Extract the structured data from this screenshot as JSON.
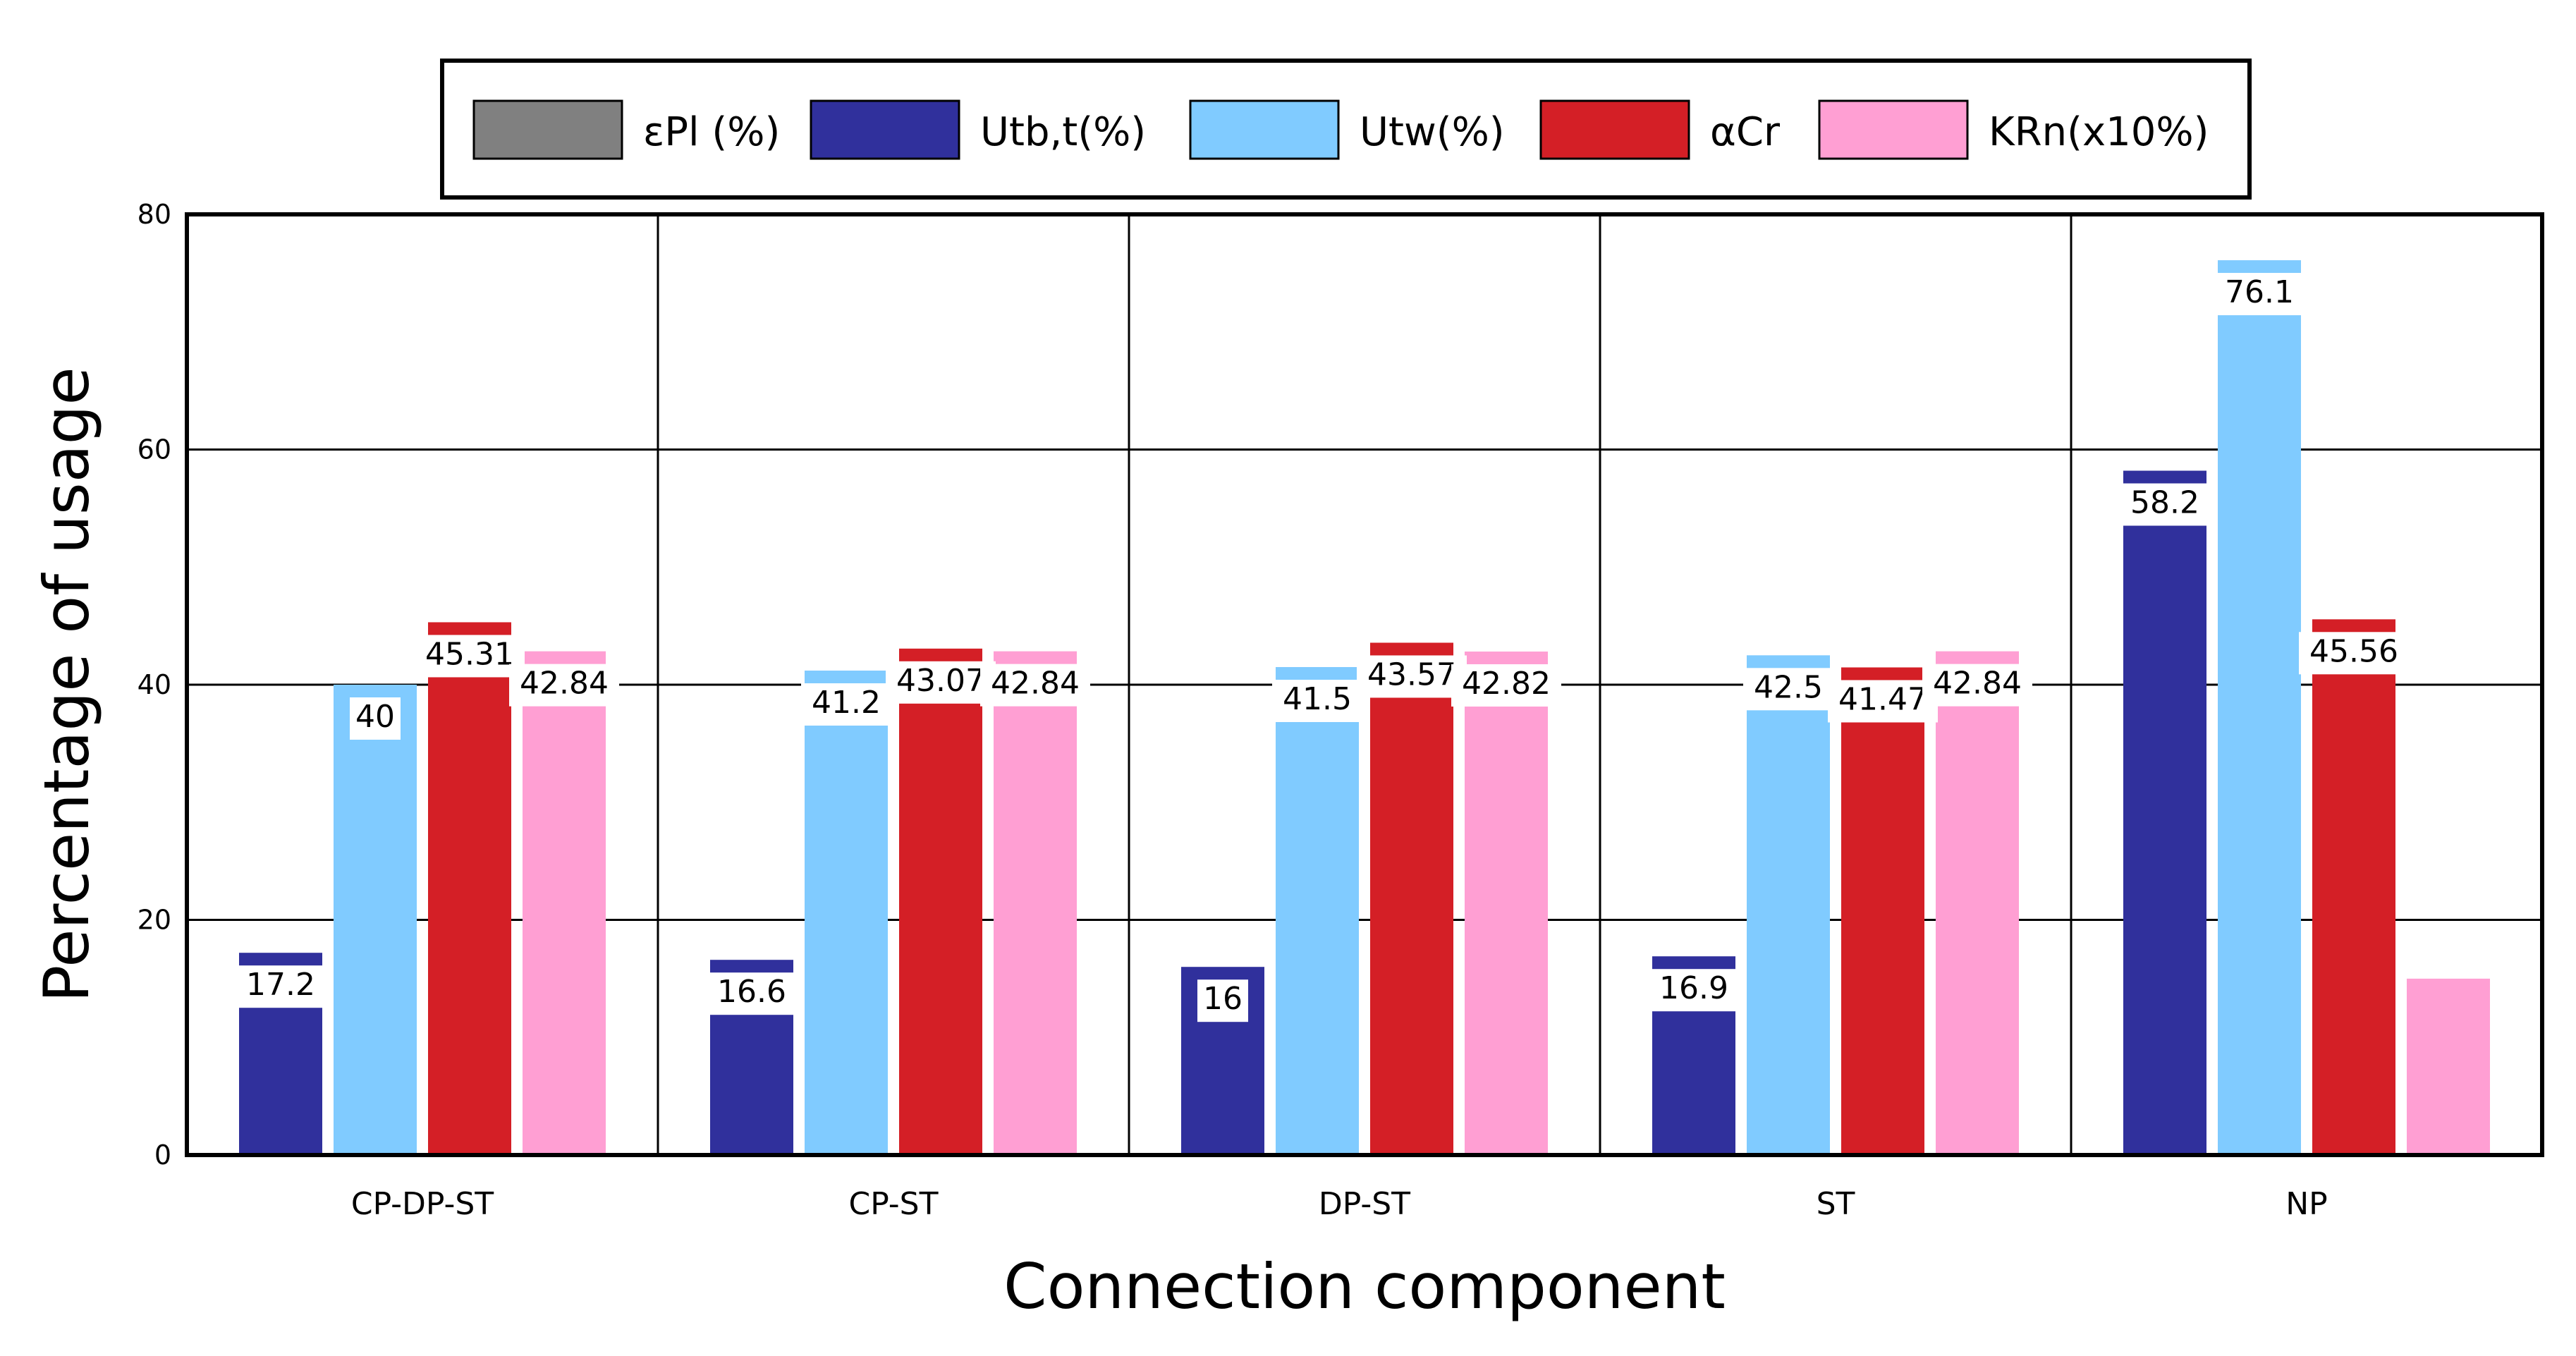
{
  "chart_data": {
    "type": "bar",
    "xlabel": "Connection component",
    "ylabel": "Percentage of usage",
    "ylim": [
      0,
      80
    ],
    "yticks": [
      "0",
      "20",
      "40",
      "60",
      "80"
    ],
    "grid": true,
    "legend_position": "top",
    "categories": [
      "CP-DP-ST",
      "CP-ST",
      "DP-ST",
      "ST",
      "NP"
    ],
    "series": [
      {
        "name": "εPl (%)",
        "color": "#808080",
        "values": [
          0,
          0,
          0,
          0,
          0
        ],
        "labels": [
          "",
          "",
          "",
          "",
          ""
        ]
      },
      {
        "name": "Utb,t(%)",
        "color": "#30309c",
        "values": [
          17.2,
          16.6,
          16,
          16.9,
          58.2
        ],
        "labels": [
          "17.2",
          "16.6",
          "16",
          "16.9",
          "58.2"
        ]
      },
      {
        "name": "Utw(%)",
        "color": "#80cbff",
        "values": [
          40,
          41.2,
          41.5,
          42.5,
          76.1
        ],
        "labels": [
          "40",
          "41.2",
          "41.5",
          "42.5",
          "76.1"
        ]
      },
      {
        "name": "αCr",
        "color": "#d41f26",
        "values": [
          45.31,
          43.07,
          43.57,
          41.47,
          45.56
        ],
        "labels": [
          "45.31",
          "43.07",
          "43.57",
          "41.47",
          "45.56"
        ]
      },
      {
        "name": "KRn(x10%)",
        "color": "#ff9fd3",
        "values": [
          42.84,
          42.84,
          42.82,
          42.84,
          15
        ],
        "labels": [
          "42.84",
          "42.84",
          "42.82",
          "42.84",
          ""
        ]
      }
    ]
  }
}
